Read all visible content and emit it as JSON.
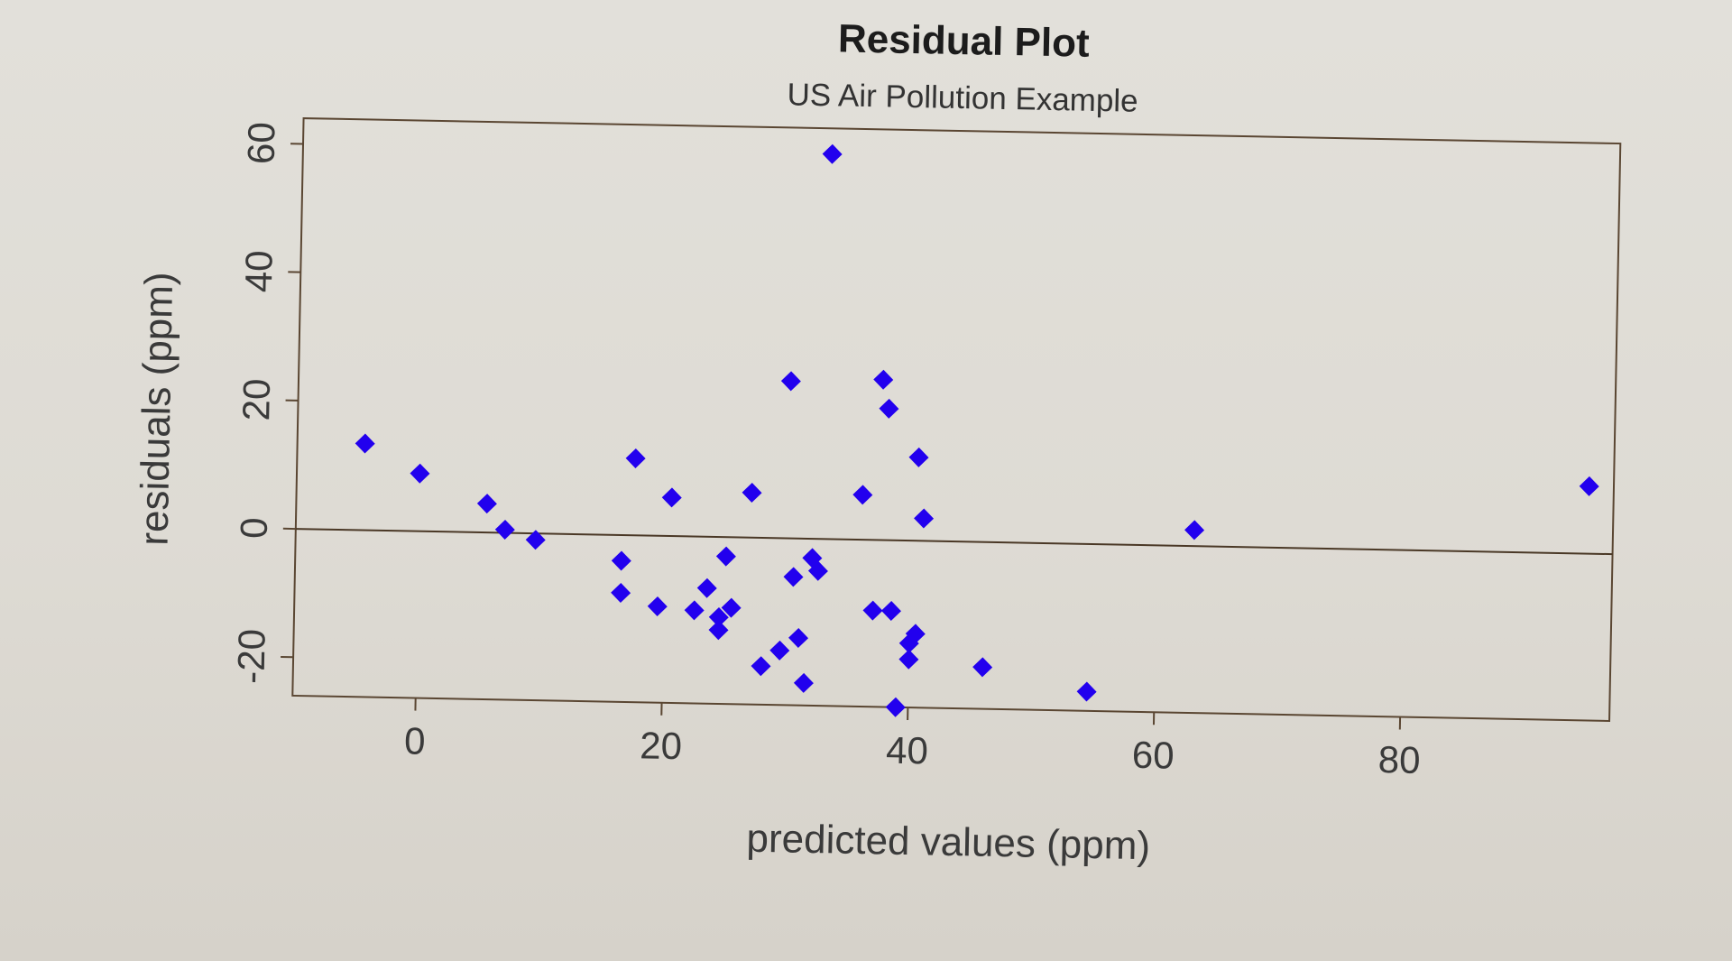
{
  "chart_data": {
    "type": "scatter",
    "title": "Residual Plot",
    "subtitle": "US Air Pollution Example",
    "xlabel": "predicted values (ppm)",
    "ylabel": "residuals (ppm)",
    "xlim": [
      -10,
      97
    ],
    "ylim": [
      -26,
      64
    ],
    "xticks": [
      0,
      20,
      40,
      60,
      80
    ],
    "yticks": [
      -20,
      0,
      20,
      40,
      60
    ],
    "xtick_labels": [
      "0",
      "20",
      "40",
      "60",
      "80"
    ],
    "ytick_labels": [
      "-20",
      "0",
      "20",
      "40",
      "60"
    ],
    "reference_line_y": 0,
    "grid": false,
    "series": [
      {
        "name": "residuals",
        "color": "#2200ee",
        "marker": "diamond",
        "points": [
          {
            "x": -4.5,
            "y": 13.5
          },
          {
            "x": 0,
            "y": 9
          },
          {
            "x": 5.5,
            "y": 4.5
          },
          {
            "x": 7,
            "y": 0.5
          },
          {
            "x": 9.5,
            "y": -1
          },
          {
            "x": 16.5,
            "y": -4
          },
          {
            "x": 16.5,
            "y": -9
          },
          {
            "x": 17.5,
            "y": 12
          },
          {
            "x": 19.5,
            "y": -11
          },
          {
            "x": 20.5,
            "y": 6
          },
          {
            "x": 22.5,
            "y": -11.5
          },
          {
            "x": 23.5,
            "y": -8
          },
          {
            "x": 24.5,
            "y": -12.5
          },
          {
            "x": 24.5,
            "y": -14.5
          },
          {
            "x": 25,
            "y": -3
          },
          {
            "x": 25.5,
            "y": -11
          },
          {
            "x": 27,
            "y": 7
          },
          {
            "x": 28,
            "y": -20
          },
          {
            "x": 29.5,
            "y": -17.5
          },
          {
            "x": 30,
            "y": 24.5
          },
          {
            "x": 30.5,
            "y": -6
          },
          {
            "x": 31,
            "y": -15.5
          },
          {
            "x": 31.5,
            "y": -22.5
          },
          {
            "x": 32,
            "y": -3
          },
          {
            "x": 32.5,
            "y": -5
          },
          {
            "x": 33,
            "y": 60
          },
          {
            "x": 36,
            "y": 7
          },
          {
            "x": 37,
            "y": -11
          },
          {
            "x": 37.5,
            "y": 25
          },
          {
            "x": 38,
            "y": 20.5
          },
          {
            "x": 38.5,
            "y": -11
          },
          {
            "x": 39,
            "y": -26
          },
          {
            "x": 40,
            "y": -18.5
          },
          {
            "x": 40,
            "y": -16
          },
          {
            "x": 40.5,
            "y": -14.5
          },
          {
            "x": 40.5,
            "y": 13
          },
          {
            "x": 41,
            "y": 3.5
          },
          {
            "x": 46,
            "y": -19.5
          },
          {
            "x": 54.5,
            "y": -23
          },
          {
            "x": 63,
            "y": 2.5
          },
          {
            "x": 95,
            "y": 10.5
          }
        ]
      }
    ]
  }
}
